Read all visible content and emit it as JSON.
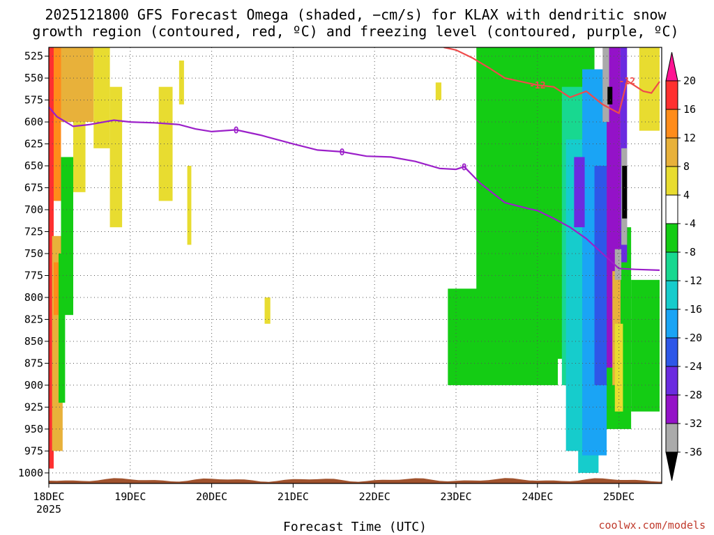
{
  "title_line1": "2025121800 GFS Forecast Omega (shaded, −cm/s) for KLAX with dendritic snow",
  "title_line2": "growth region (contoured, red, ºC) and freezing level (contoured, purple, ºC)",
  "credit": "coolwx.com/models",
  "colors": {
    "freezing_level": "#9b1fc9",
    "dgz": "#ef4b4b",
    "terrain": "#a0522d",
    "gridline": "#555555"
  },
  "chart_data": {
    "type": "heatmap",
    "xlabel": "Forecast Time (UTC)",
    "ylabel": "",
    "x_ticks": [
      "18DEC",
      "19DEC",
      "20DEC",
      "21DEC",
      "22DEC",
      "23DEC",
      "24DEC",
      "25DEC"
    ],
    "x_sublabel": "2025",
    "x_range_days": [
      0,
      7.5
    ],
    "y_ticks_hpa": [
      525,
      550,
      575,
      600,
      625,
      650,
      675,
      700,
      725,
      750,
      775,
      800,
      825,
      850,
      875,
      900,
      925,
      950,
      975,
      1000
    ],
    "y_range_hpa": [
      515,
      1012
    ],
    "colorbar": {
      "labels": [
        20,
        16,
        12,
        8,
        4,
        -4,
        -8,
        -12,
        -16,
        -20,
        -24,
        -28,
        -32,
        -36
      ],
      "colors": [
        "#ff1493",
        "#ff3030",
        "#ff8c1a",
        "#e8b13a",
        "#e8dc30",
        "#ffffff",
        "#14cc14",
        "#18d890",
        "#16cccc",
        "#1aa4f5",
        "#2e57e8",
        "#6b2be0",
        "#9412c8",
        "#aaaaaa",
        "#000000"
      ]
    },
    "contours": [
      {
        "name": "freezing level",
        "label": "0",
        "points": [
          [
            0,
            583
          ],
          [
            0.1,
            594
          ],
          [
            0.3,
            605
          ],
          [
            0.5,
            603
          ],
          [
            0.8,
            598
          ],
          [
            1.0,
            600
          ],
          [
            1.3,
            601
          ],
          [
            1.6,
            603
          ],
          [
            1.8,
            608
          ],
          [
            2.0,
            611
          ],
          [
            2.3,
            609
          ],
          [
            2.6,
            615
          ],
          [
            3.0,
            625
          ],
          [
            3.3,
            632
          ],
          [
            3.6,
            634
          ],
          [
            3.9,
            639
          ],
          [
            4.2,
            640
          ],
          [
            4.5,
            645
          ],
          [
            4.8,
            653
          ],
          [
            5.0,
            654
          ],
          [
            5.1,
            651
          ],
          [
            5.3,
            670
          ],
          [
            5.6,
            692
          ],
          [
            5.9,
            699
          ],
          [
            6.0,
            701
          ],
          [
            6.2,
            710
          ],
          [
            6.4,
            720
          ],
          [
            6.6,
            733
          ],
          [
            6.8,
            750
          ],
          [
            7.0,
            767
          ],
          [
            7.2,
            768
          ],
          [
            7.5,
            769
          ]
        ]
      },
      {
        "name": "dendritic growth -12",
        "label": "-12",
        "points": [
          [
            4.85,
            515
          ],
          [
            5.0,
            518
          ],
          [
            5.2,
            527
          ],
          [
            5.4,
            538
          ],
          [
            5.6,
            550
          ],
          [
            6.0,
            558
          ],
          [
            6.2,
            560
          ],
          [
            6.4,
            572
          ],
          [
            6.6,
            565
          ],
          [
            6.8,
            580
          ],
          [
            7.0,
            590
          ],
          [
            7.1,
            553
          ],
          [
            7.3,
            565
          ],
          [
            7.4,
            567
          ],
          [
            7.5,
            554
          ]
        ]
      }
    ],
    "cells": [
      {
        "x": [
          0.0,
          0.06
        ],
        "p": [
          515,
          995
        ],
        "v": 20
      },
      {
        "x": [
          0.06,
          0.15
        ],
        "p": [
          515,
          690
        ],
        "v": 16
      },
      {
        "x": [
          0.15,
          0.22
        ],
        "p": [
          515,
          595
        ],
        "v": 20
      },
      {
        "x": [
          0.15,
          0.55
        ],
        "p": [
          515,
          600
        ],
        "v": 10
      },
      {
        "x": [
          0.3,
          0.45
        ],
        "p": [
          600,
          680
        ],
        "v": 8
      },
      {
        "x": [
          0.55,
          0.75
        ],
        "p": [
          515,
          630
        ],
        "v": 6
      },
      {
        "x": [
          0.75,
          0.9
        ],
        "p": [
          560,
          720
        ],
        "v": 5
      },
      {
        "x": [
          0.04,
          0.17
        ],
        "p": [
          730,
          975
        ],
        "v": 12
      },
      {
        "x": [
          0.06,
          0.12
        ],
        "p": [
          760,
          820
        ],
        "v": 16
      },
      {
        "x": [
          0.15,
          0.3
        ],
        "p": [
          640,
          820
        ],
        "v": -6
      },
      {
        "x": [
          0.12,
          0.2
        ],
        "p": [
          750,
          920
        ],
        "v": -6
      },
      {
        "x": [
          1.35,
          1.52
        ],
        "p": [
          560,
          690
        ],
        "v": 5
      },
      {
        "x": [
          1.6,
          1.66
        ],
        "p": [
          530,
          580
        ],
        "v": 5
      },
      {
        "x": [
          1.7,
          1.75
        ],
        "p": [
          650,
          740
        ],
        "v": 5
      },
      {
        "x": [
          2.65,
          2.72
        ],
        "p": [
          800,
          830
        ],
        "v": 5
      },
      {
        "x": [
          4.75,
          4.82
        ],
        "p": [
          555,
          575
        ],
        "v": 5
      },
      {
        "x": [
          6.4,
          6.48
        ],
        "p": [
          575,
          590
        ],
        "v": 5
      },
      {
        "x": [
          7.25,
          7.5
        ],
        "p": [
          515,
          610
        ],
        "v": 5
      },
      {
        "x": [
          5.25,
          6.7
        ],
        "p": [
          515,
          870
        ],
        "v": -6
      },
      {
        "x": [
          4.9,
          6.25
        ],
        "p": [
          790,
          900
        ],
        "v": -6
      },
      {
        "x": [
          6.3,
          6.9
        ],
        "p": [
          560,
          900
        ],
        "v": -10
      },
      {
        "x": [
          6.65,
          7.15
        ],
        "p": [
          720,
          950
        ],
        "v": -6
      },
      {
        "x": [
          7.15,
          7.5
        ],
        "p": [
          780,
          930
        ],
        "v": -6
      },
      {
        "x": [
          6.35,
          6.65
        ],
        "p": [
          620,
          975
        ],
        "v": -14
      },
      {
        "x": [
          6.5,
          6.75
        ],
        "p": [
          650,
          1000
        ],
        "v": -14
      },
      {
        "x": [
          6.55,
          6.85
        ],
        "p": [
          540,
          980
        ],
        "v": -18
      },
      {
        "x": [
          6.7,
          6.85
        ],
        "p": [
          650,
          900
        ],
        "v": -22
      },
      {
        "x": [
          6.45,
          6.58
        ],
        "p": [
          640,
          720
        ],
        "v": -26
      },
      {
        "x": [
          6.85,
          7.02
        ],
        "p": [
          515,
          880
        ],
        "v": -30
      },
      {
        "x": [
          7.02,
          7.1
        ],
        "p": [
          515,
          760
        ],
        "v": -26
      },
      {
        "x": [
          6.92,
          7.02
        ],
        "p": [
          770,
          900
        ],
        "v": 12
      },
      {
        "x": [
          6.95,
          7.05
        ],
        "p": [
          830,
          930
        ],
        "v": 5
      },
      {
        "x": [
          6.8,
          6.88
        ],
        "p": [
          515,
          600
        ],
        "v": -34
      },
      {
        "x": [
          7.03,
          7.1
        ],
        "p": [
          630,
          740
        ],
        "v": -34
      },
      {
        "x": [
          6.95,
          7.03
        ],
        "p": [
          745,
          780
        ],
        "v": -34
      },
      {
        "x": [
          6.86,
          6.92
        ],
        "p": [
          560,
          580
        ],
        "v": -38
      },
      {
        "x": [
          7.04,
          7.1
        ],
        "p": [
          650,
          710
        ],
        "v": -38
      }
    ]
  }
}
